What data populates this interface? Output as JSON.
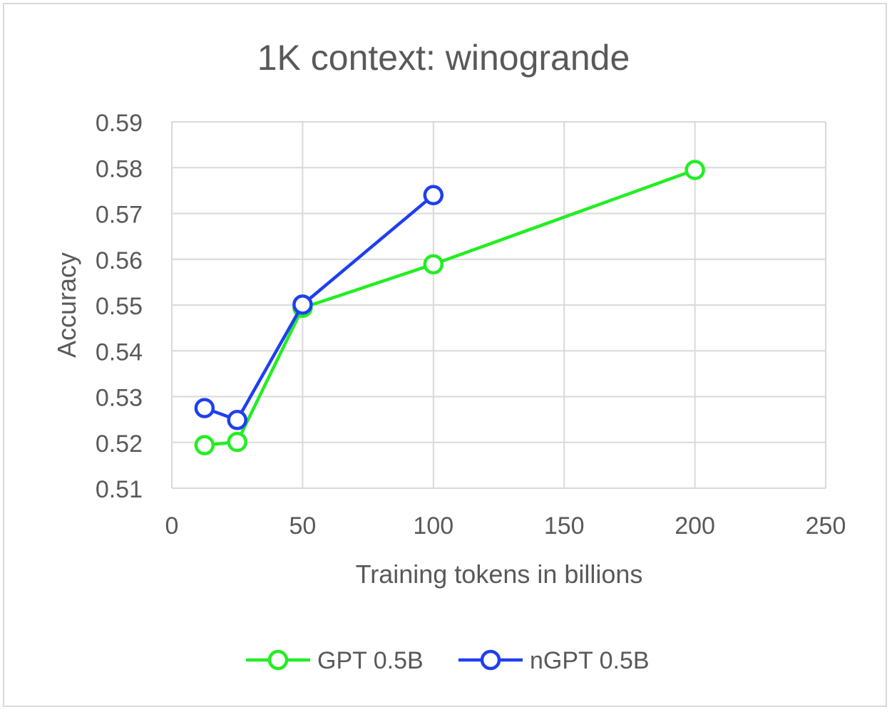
{
  "chart_data": {
    "type": "line",
    "title": "1K context: winogrande",
    "xlabel": "Training tokens in billions",
    "ylabel": "Accuracy",
    "xlim": [
      0,
      250
    ],
    "ylim": [
      0.51,
      0.59
    ],
    "xticks": [
      0,
      50,
      100,
      150,
      200,
      250
    ],
    "xtick_labels": [
      "0",
      "50",
      "100",
      "150",
      "200",
      "250"
    ],
    "yticks": [
      0.51,
      0.52,
      0.53,
      0.54,
      0.55,
      0.56,
      0.57,
      0.58,
      0.59
    ],
    "ytick_labels": [
      "0.51",
      "0.52",
      "0.53",
      "0.54",
      "0.55",
      "0.56",
      "0.57",
      "0.58",
      "0.59"
    ],
    "grid": true,
    "legend_position": "bottom",
    "series": [
      {
        "name": "GPT 0.5B",
        "color": "#22ee22",
        "marker": "circle-open",
        "x": [
          12.5,
          25,
          50,
          100,
          200
        ],
        "y": [
          0.5194,
          0.5201,
          0.5494,
          0.5589,
          0.5795
        ]
      },
      {
        "name": "nGPT 0.5B",
        "color": "#1f3ff0",
        "marker": "circle-open",
        "x": [
          12.5,
          25,
          50,
          100
        ],
        "y": [
          0.5275,
          0.5249,
          0.5501,
          0.574
        ]
      }
    ]
  }
}
